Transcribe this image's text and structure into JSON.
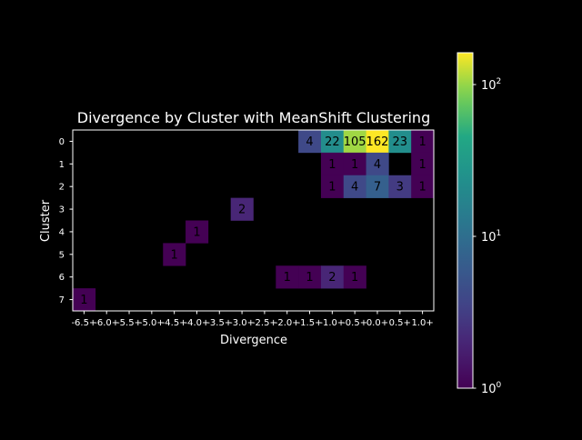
{
  "chart_data": {
    "type": "heatmap",
    "title": "Divergence by Cluster with MeanShift Clustering",
    "xlabel": "Divergence",
    "ylabel": "Cluster",
    "x_categories": [
      "-6.5+",
      "-6.0+",
      "-5.5+",
      "-5.0+",
      "-4.5+",
      "-4.0+",
      "-3.5+",
      "-3.0+",
      "-2.5+",
      "-2.0+",
      "-1.5+",
      "-1.0+",
      "-0.5+",
      "0.0+",
      "0.5+",
      "1.0+"
    ],
    "y_categories": [
      "0",
      "1",
      "2",
      "3",
      "4",
      "5",
      "6",
      "7"
    ],
    "values": [
      [
        0,
        0,
        0,
        0,
        0,
        0,
        0,
        0,
        0,
        0,
        4,
        22,
        105,
        162,
        23,
        1
      ],
      [
        0,
        0,
        0,
        0,
        0,
        0,
        0,
        0,
        0,
        0,
        0,
        1,
        1,
        4,
        0,
        1
      ],
      [
        0,
        0,
        0,
        0,
        0,
        0,
        0,
        0,
        0,
        0,
        0,
        1,
        4,
        7,
        3,
        1
      ],
      [
        0,
        0,
        0,
        0,
        0,
        0,
        0,
        2,
        0,
        0,
        0,
        0,
        0,
        0,
        0,
        0
      ],
      [
        0,
        0,
        0,
        0,
        0,
        1,
        0,
        0,
        0,
        0,
        0,
        0,
        0,
        0,
        0,
        0
      ],
      [
        0,
        0,
        0,
        0,
        1,
        0,
        0,
        0,
        0,
        0,
        0,
        0,
        0,
        0,
        0,
        0
      ],
      [
        0,
        0,
        0,
        0,
        0,
        0,
        0,
        0,
        0,
        1,
        1,
        2,
        1,
        0,
        0,
        0
      ],
      [
        1,
        0,
        0,
        0,
        0,
        0,
        0,
        0,
        0,
        0,
        0,
        0,
        0,
        0,
        0,
        0
      ]
    ],
    "color_scale": "log",
    "colormap": "viridis",
    "vmin": 1,
    "vmax": 162,
    "colorbar_ticks": [
      {
        "value": 1,
        "base": "10",
        "exp": "0"
      },
      {
        "value": 10,
        "base": "10",
        "exp": "1"
      },
      {
        "value": 100,
        "base": "10",
        "exp": "2"
      }
    ],
    "background": "#000000"
  }
}
